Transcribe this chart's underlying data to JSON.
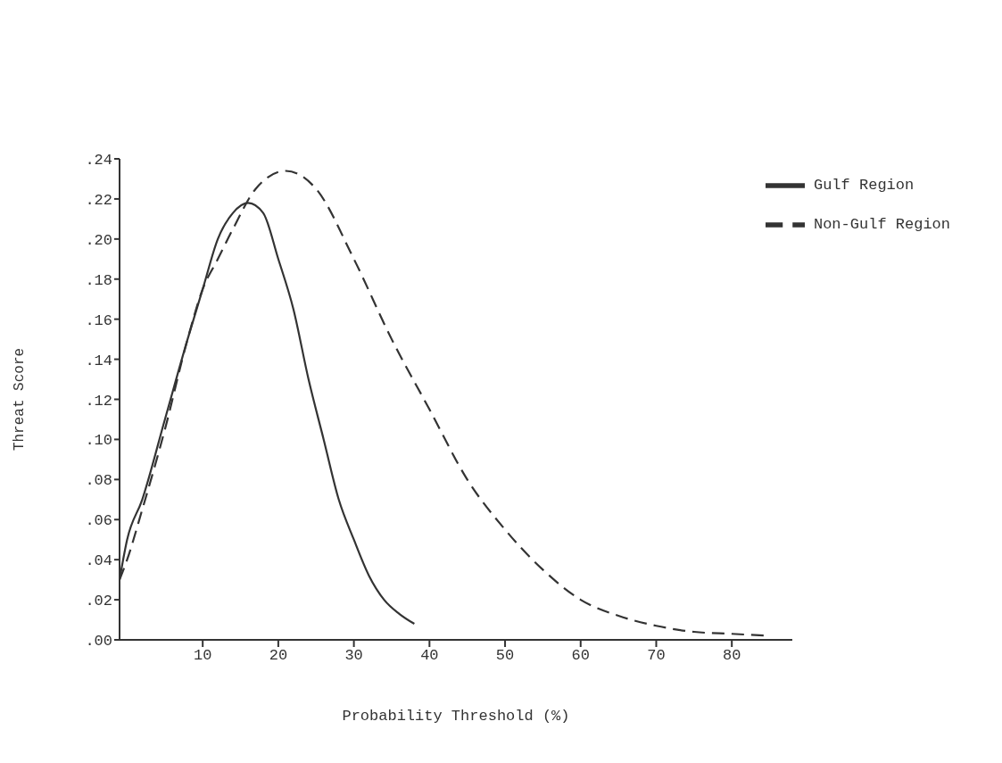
{
  "chart_data": {
    "type": "line",
    "xlabel": "Probability Threshold (%)",
    "ylabel": "Threat Score",
    "xlim": [
      -1,
      88
    ],
    "ylim": [
      0,
      0.24
    ],
    "xticks": [
      10,
      20,
      30,
      40,
      50,
      60,
      70,
      80
    ],
    "yticks": [
      {
        "value": 0,
        "label": ".00"
      },
      {
        "value": 0.02,
        "label": ".02"
      },
      {
        "value": 0.04,
        "label": ".04"
      },
      {
        "value": 0.06,
        "label": ".06"
      },
      {
        "value": 0.08,
        "label": ".08"
      },
      {
        "value": 0.1,
        "label": ".10"
      },
      {
        "value": 0.12,
        "label": ".12"
      },
      {
        "value": 0.14,
        "label": ".14"
      },
      {
        "value": 0.16,
        "label": ".16"
      },
      {
        "value": 0.18,
        "label": ".18"
      },
      {
        "value": 0.2,
        "label": ".20"
      },
      {
        "value": 0.22,
        "label": ".22"
      },
      {
        "value": 0.24,
        "label": ".24"
      }
    ],
    "grid": false,
    "legend": "top right",
    "marker": "none",
    "series": [
      {
        "name": "Gulf Region",
        "color": "#333333",
        "line_style": "solid",
        "x": [
          -1,
          0,
          2,
          5,
          8,
          10,
          12,
          14,
          16,
          18,
          20,
          22,
          24,
          26,
          28,
          30,
          32,
          34,
          36,
          38
        ],
        "values": [
          0.03,
          0.05,
          0.07,
          0.11,
          0.15,
          0.175,
          0.2,
          0.213,
          0.218,
          0.213,
          0.19,
          0.165,
          0.13,
          0.1,
          0.07,
          0.05,
          0.032,
          0.02,
          0.013,
          0.008
        ]
      },
      {
        "name": "Non-Gulf Region",
        "color": "#333333",
        "line_style": "dashed",
        "x": [
          -1,
          0,
          2,
          5,
          8,
          10,
          12,
          14,
          17,
          21,
          25,
          30,
          35,
          40,
          45,
          50,
          55,
          60,
          65,
          70,
          75,
          80,
          85
        ],
        "values": [
          0.03,
          0.04,
          0.065,
          0.105,
          0.15,
          0.175,
          0.19,
          0.205,
          0.225,
          0.234,
          0.225,
          0.19,
          0.15,
          0.115,
          0.08,
          0.055,
          0.035,
          0.02,
          0.012,
          0.007,
          0.004,
          0.003,
          0.002
        ]
      }
    ]
  }
}
